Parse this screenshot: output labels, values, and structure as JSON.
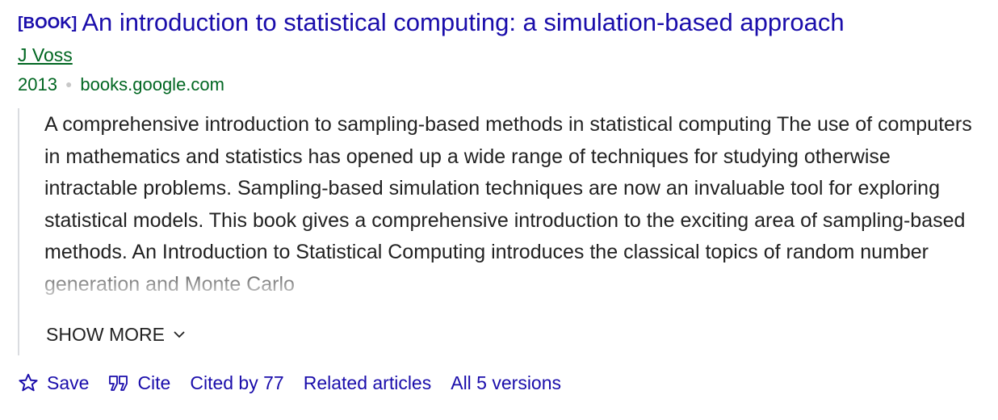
{
  "result": {
    "type_tag": "[BOOK]",
    "title": "An introduction to statistical computing: a simulation-based approach",
    "author": "J Voss",
    "year": "2013",
    "source": "books.google.com",
    "snippet": "A comprehensive introduction to sampling-based methods in statistical computing The use of computers in mathematics and statistics has opened up a wide range of techniques for studying otherwise intractable problems. Sampling-based simulation techniques are now an invaluable tool for exploring statistical models. This book gives a comprehensive introduction to the exciting area of sampling-based methods. An Introduction to Statistical Computing introduces the classical topics of random number generation and Monte Carlo",
    "show_more_label": "SHOW MORE",
    "actions": {
      "save_label": "Save",
      "cite_label": "Cite",
      "cited_by_label": "Cited by 77",
      "related_label": "Related articles",
      "versions_label": "All 5 versions"
    }
  },
  "colors": {
    "link": "#1a0dab",
    "meta_green": "#006621",
    "text": "#222222",
    "separator": "#c8c8c8"
  },
  "icons": {
    "save": "star-outline-icon",
    "cite": "quote-icon",
    "show_more": "chevron-down-icon"
  }
}
